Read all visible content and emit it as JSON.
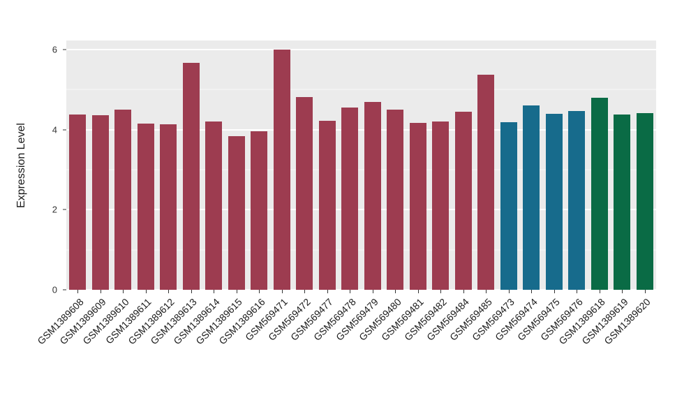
{
  "figure": {
    "background": "#ffffff",
    "panel_background": "#ebebeb",
    "gridline_color": "#ffffff",
    "tick_color": "#333333",
    "axis_text_color": "#333333"
  },
  "chart_data": {
    "type": "bar",
    "title": "",
    "xlabel": "",
    "ylabel": "Expression Level",
    "ylim": [
      0,
      6.23
    ],
    "yticks": [
      0,
      2,
      4,
      6
    ],
    "yticks_minor": [
      1,
      3,
      5
    ],
    "grid": "on",
    "legend_position": "none",
    "categories": [
      "GSM1389608",
      "GSM1389609",
      "GSM1389610",
      "GSM1389611",
      "GSM1389612",
      "GSM1389613",
      "GSM1389614",
      "GSM1389615",
      "GSM1389616",
      "GSM569471",
      "GSM569472",
      "GSM569477",
      "GSM569478",
      "GSM569479",
      "GSM569480",
      "GSM569481",
      "GSM569482",
      "GSM569484",
      "GSM569485",
      "GSM569473",
      "GSM569474",
      "GSM569475",
      "GSM569476",
      "GSM1389618",
      "GSM1389619",
      "GSM1389620"
    ],
    "values": [
      4.38,
      4.36,
      4.5,
      4.15,
      4.13,
      5.68,
      4.2,
      3.84,
      3.96,
      6.0,
      4.82,
      4.22,
      4.55,
      4.7,
      4.5,
      4.17,
      4.2,
      4.45,
      5.38,
      4.18,
      4.6,
      4.4,
      4.47,
      4.8,
      4.38,
      4.41
    ],
    "groups": [
      "maroon",
      "maroon",
      "maroon",
      "maroon",
      "maroon",
      "maroon",
      "maroon",
      "maroon",
      "maroon",
      "maroon",
      "maroon",
      "maroon",
      "maroon",
      "maroon",
      "maroon",
      "maroon",
      "maroon",
      "maroon",
      "maroon",
      "blue",
      "blue",
      "blue",
      "blue",
      "green",
      "green",
      "green"
    ],
    "palette": {
      "maroon": "#9D3C50",
      "blue": "#176B8C",
      "green": "#0A6B45"
    }
  }
}
